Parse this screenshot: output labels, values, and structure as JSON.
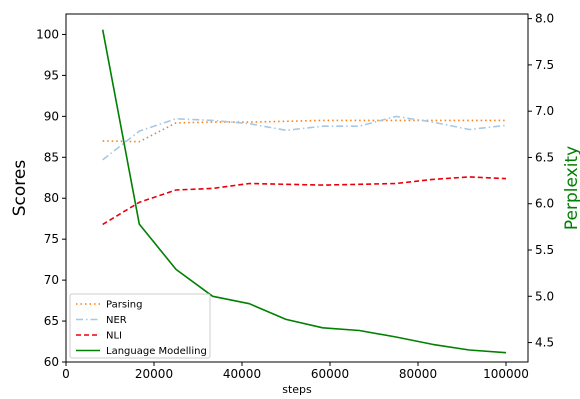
{
  "chart_data": {
    "type": "line",
    "xlabel": "steps",
    "ylabel": "Scores",
    "y2label": "Perplexity",
    "xlim": [
      0,
      105000
    ],
    "ylim": [
      60,
      102.5
    ],
    "y2lim": [
      4.29,
      8.05
    ],
    "xticks": [
      0,
      20000,
      40000,
      60000,
      80000,
      100000
    ],
    "yticks": [
      60,
      65,
      70,
      75,
      80,
      85,
      90,
      95,
      100
    ],
    "y2ticks": [
      4.5,
      5.0,
      5.5,
      6.0,
      6.5,
      7.0,
      7.5,
      8.0
    ],
    "legend_position": "lower-left",
    "grid": false,
    "series": [
      {
        "name": "Parsing",
        "axis": "left",
        "color": "#ff7f0e",
        "style": "dotted",
        "x": [
          8333,
          16667,
          25000,
          33333,
          41667,
          50000,
          58333,
          66667,
          75000,
          83333,
          91667,
          100000
        ],
        "y": [
          87.0,
          86.9,
          89.2,
          89.3,
          89.3,
          89.4,
          89.5,
          89.5,
          89.5,
          89.5,
          89.5,
          89.5
        ]
      },
      {
        "name": "NER",
        "axis": "left",
        "color": "#a6c8e6",
        "style": "dashdot",
        "x": [
          8333,
          16667,
          25000,
          33333,
          41667,
          50000,
          58333,
          66667,
          75000,
          83333,
          91667,
          100000
        ],
        "y": [
          84.7,
          88.2,
          89.7,
          89.5,
          89.1,
          88.3,
          88.8,
          88.8,
          90.0,
          89.3,
          88.4,
          88.9
        ]
      },
      {
        "name": "NLI",
        "axis": "left",
        "color": "#e8000b",
        "style": "dashed",
        "x": [
          8333,
          16667,
          25000,
          33333,
          41667,
          50000,
          58333,
          66667,
          75000,
          83333,
          91667,
          100000
        ],
        "y": [
          76.8,
          79.5,
          81.0,
          81.2,
          81.8,
          81.7,
          81.6,
          81.7,
          81.8,
          82.3,
          82.6,
          82.4
        ]
      },
      {
        "name": "Language Modelling",
        "axis": "right",
        "color": "#008000",
        "style": "solid",
        "x": [
          8333,
          16667,
          25000,
          33333,
          41667,
          50000,
          58333,
          66667,
          75000,
          83333,
          91667,
          100000
        ],
        "y": [
          7.88,
          5.78,
          5.29,
          5.0,
          4.92,
          4.75,
          4.66,
          4.63,
          4.56,
          4.48,
          4.42,
          4.39
        ]
      }
    ]
  }
}
